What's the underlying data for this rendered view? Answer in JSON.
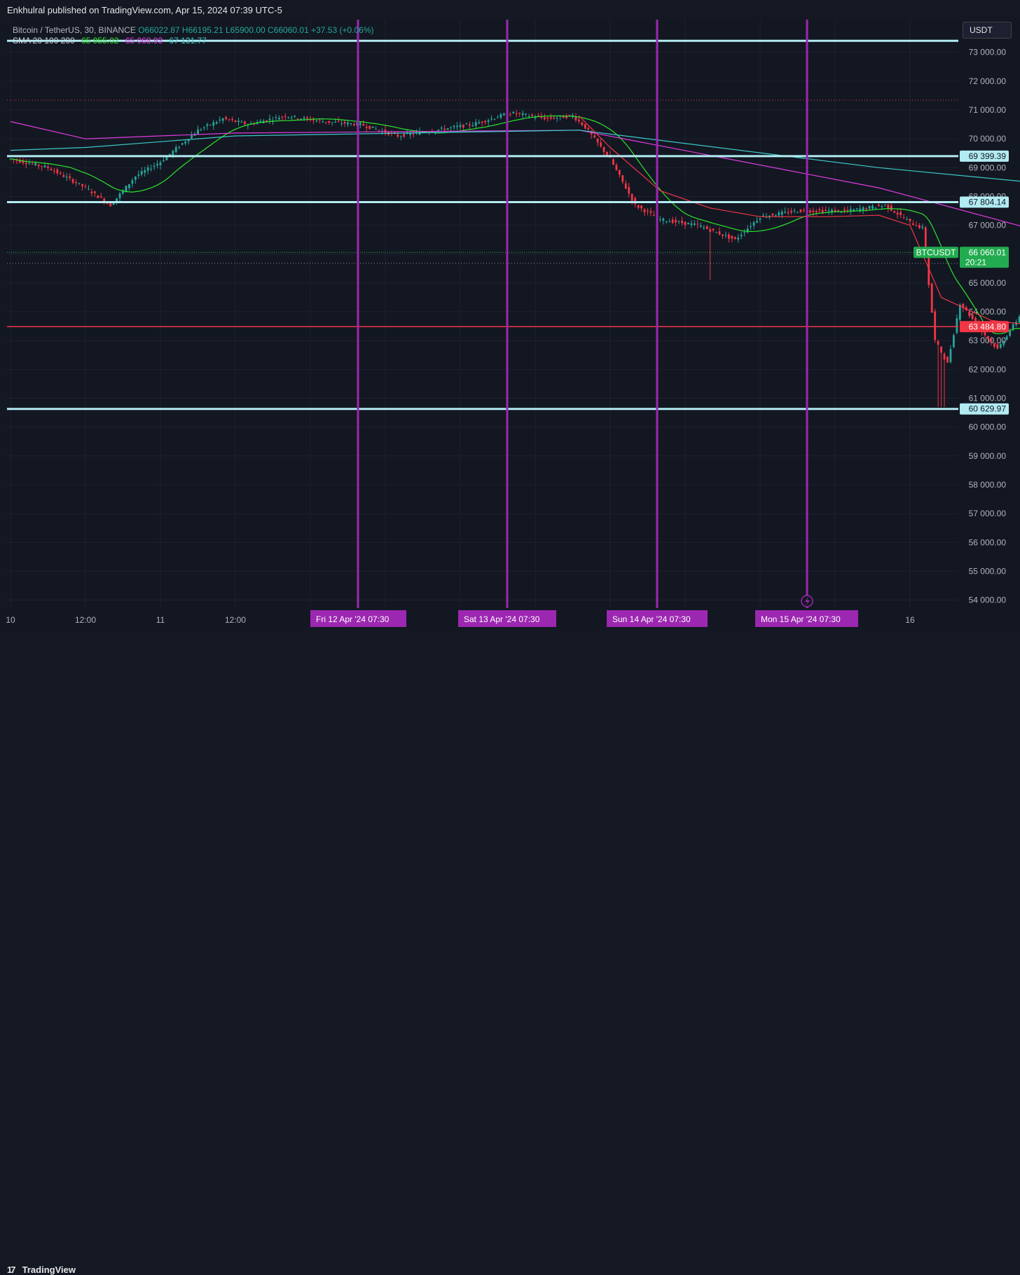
{
  "header": {
    "publish_text": "Enkhulral published on TradingView.com, Apr 15, 2024 07:39 UTC-5"
  },
  "legend": {
    "symbol_line": "Bitcoin / TetherUS, 30, BINANCE",
    "ohlc": "O66022.87 H66195.21 L65900.00 C66060.01 +37.53 (+0.06%)",
    "sma_label": "SMA 20 100 200",
    "sma20": "65 955.02",
    "sma100": "65 068.93",
    "sma200": "67 131.77"
  },
  "price_axis": {
    "currency": "USDT",
    "ticks": [
      "73 000.00",
      "72 000.00",
      "71 000.00",
      "70 000.00",
      "69 000.00",
      "68 000.00",
      "67 000.00",
      "66 000.00",
      "65 000.00",
      "64 000.00",
      "63 000.00",
      "62 000.00",
      "61 000.00",
      "60 000.00",
      "59 000.00",
      "58 000.00",
      "57 000.00",
      "56 000.00",
      "55 000.00",
      "54 000.00"
    ],
    "tick_values": [
      73000,
      72000,
      71000,
      70000,
      69000,
      68000,
      67000,
      66000,
      65000,
      64000,
      63000,
      62000,
      61000,
      60000,
      59000,
      58000,
      57000,
      56000,
      55000,
      54000
    ]
  },
  "time_axis": {
    "labels": [
      "10",
      "12:00",
      "11",
      "12:00",
      "16"
    ],
    "highlight_labels": [
      "Fri 12 Apr '24   07:30",
      "Sat 13 Apr '24   07:30",
      "Sun 14 Apr '24   07:30",
      "Mon 15 Apr '24   07:30"
    ]
  },
  "levels": [
    {
      "price": 73400,
      "label": "",
      "color": "#b2ebf2"
    },
    {
      "price": 69399.39,
      "label": "69 399.39",
      "color": "#b2ebf2"
    },
    {
      "price": 67804.14,
      "label": "67 804.14",
      "color": "#b2ebf2"
    },
    {
      "price": 63484.8,
      "label": "63 484.80",
      "color": "#f23645"
    },
    {
      "price": 60629.97,
      "label": "60 629.97",
      "color": "#b2ebf2"
    }
  ],
  "current_price": {
    "symbol": "BTCUSDT",
    "price": "66 060.01",
    "countdown": "20:21",
    "color": "#22ab4f"
  },
  "colors": {
    "up": "#26a69a",
    "down": "#f23645",
    "vline": "#9c27b0",
    "sma20": "#2be52b",
    "sma100": "#e03ce0",
    "sma200": "#3cc8c8"
  },
  "footer": {
    "logo_text": "TradingView"
  },
  "chart_data": {
    "type": "line",
    "title": "Bitcoin / TetherUS, 30, BINANCE",
    "ylim": [
      53500,
      74000
    ],
    "x": [
      "Apr 10 00:00",
      "Apr 10 12:00",
      "Apr 11 00:00",
      "Apr 11 12:00",
      "Apr 12 07:30",
      "Apr 13 07:30",
      "Apr 14 07:30",
      "Apr 15 07:30"
    ],
    "series": [
      {
        "name": "BTCUSDT",
        "values": [
          69400,
          67800,
          71000,
          70200,
          70900,
          67700,
          64200,
          66060
        ]
      },
      {
        "name": "SMA 20",
        "values": [
          69100,
          68400,
          70700,
          70300,
          70700,
          67400,
          64000,
          65955
        ]
      },
      {
        "name": "SMA 100",
        "values": [
          70600,
          70000,
          70100,
          70200,
          70300,
          68300,
          65500,
          65069
        ]
      },
      {
        "name": "SMA 200",
        "values": [
          69600,
          69700,
          69900,
          70100,
          70300,
          69000,
          68000,
          67132
        ]
      }
    ]
  }
}
